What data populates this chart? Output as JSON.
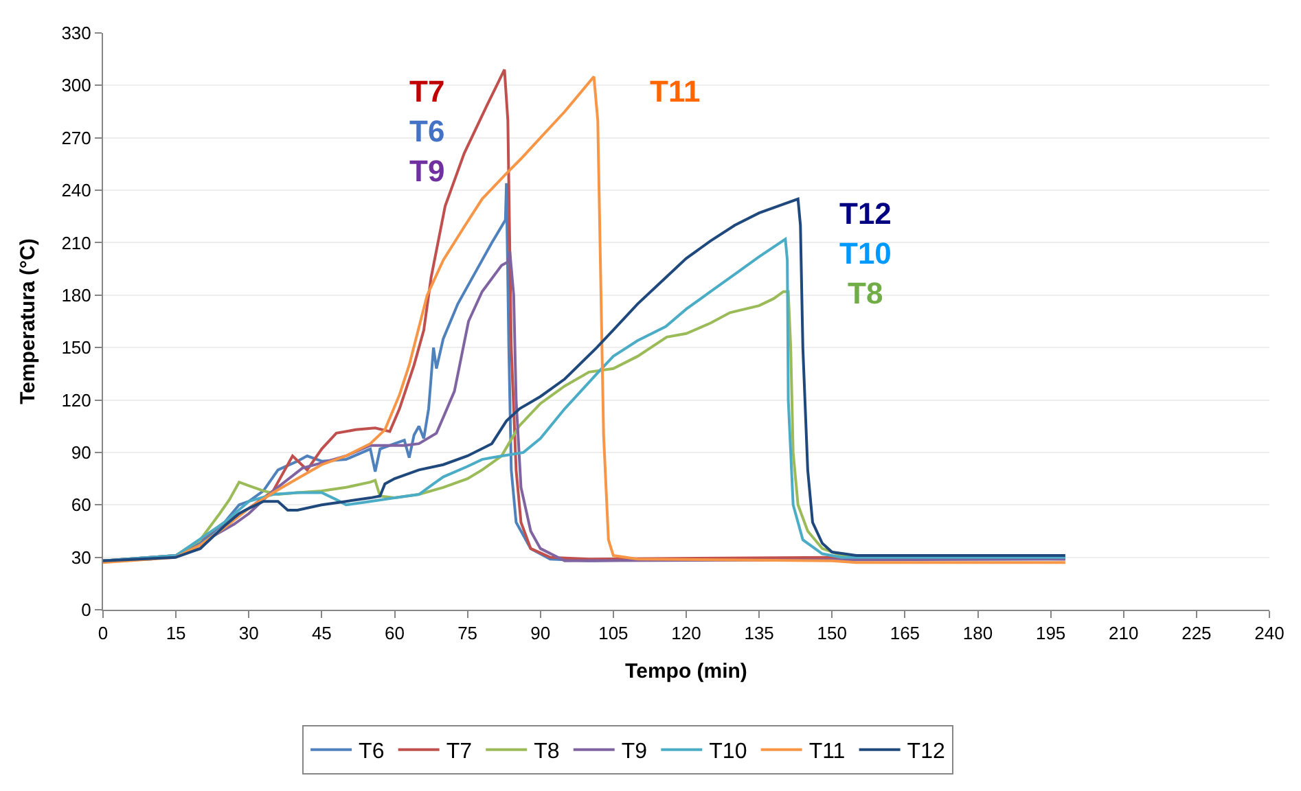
{
  "chart_data": {
    "type": "line",
    "xlabel": "Tempo (min)",
    "ylabel": "Temperatura (°C)",
    "xlim": [
      0,
      240
    ],
    "xticks": [
      0,
      15,
      30,
      45,
      60,
      75,
      90,
      105,
      120,
      135,
      150,
      165,
      180,
      195,
      210,
      225,
      240
    ],
    "ylim": [
      0,
      330
    ],
    "yticks": [
      0,
      30,
      60,
      90,
      120,
      150,
      180,
      210,
      240,
      270,
      300,
      330
    ],
    "grid": "y",
    "legend": "bottom",
    "marker": "none",
    "line_style": "solid",
    "series": [
      {
        "name": "T6",
        "color": "#4f81bd",
        "x": [
          0,
          10,
          15,
          20,
          25,
          28,
          30,
          33,
          36,
          40,
          42,
          45,
          50,
          55,
          56,
          57,
          60,
          62,
          63,
          64,
          65,
          66,
          67,
          68,
          68.6,
          70,
          73,
          76,
          80,
          82.8,
          83,
          83.5,
          84,
          85,
          88,
          92,
          100,
          120,
          150,
          198
        ],
        "values": [
          28,
          29,
          31,
          38,
          50,
          60,
          62,
          68,
          80,
          85,
          88,
          85,
          86,
          92,
          79,
          92,
          95,
          97,
          87,
          100,
          105,
          98,
          115,
          150,
          138,
          155,
          175,
          190,
          210,
          223,
          244,
          150,
          80,
          50,
          35,
          29,
          28,
          29,
          29,
          29
        ]
      },
      {
        "name": "T7",
        "color": "#c0504d",
        "x": [
          0,
          15,
          20,
          25,
          30,
          35,
          39,
          42,
          45,
          48,
          52,
          56,
          59,
          61,
          64,
          66,
          67.5,
          70.4,
          74.3,
          78.9,
          82.6,
          83.3,
          84,
          85,
          86,
          88,
          92,
          100,
          150,
          198
        ],
        "values": [
          28,
          31,
          40,
          50,
          58,
          68,
          88,
          80,
          92,
          101,
          103,
          104,
          102,
          115,
          140,
          160,
          190,
          231,
          261,
          288,
          309,
          280,
          150,
          80,
          50,
          35,
          30,
          29,
          30,
          29
        ]
      },
      {
        "name": "T8",
        "color": "#9bbb59",
        "x": [
          0,
          15,
          20,
          24,
          26,
          28,
          30,
          33,
          36,
          40,
          45,
          50,
          55,
          56,
          57,
          60,
          65,
          70,
          75,
          78,
          82,
          85.6,
          90,
          95,
          100,
          105,
          110,
          116,
          120,
          125,
          129,
          135,
          138,
          140,
          141,
          141.5,
          142,
          143,
          145,
          148,
          152,
          160,
          198
        ],
        "values": [
          28,
          31,
          40,
          55,
          63,
          73,
          71,
          68,
          66,
          67,
          68,
          70,
          73,
          74,
          65,
          64,
          66,
          70,
          75,
          80,
          88,
          105,
          118,
          128,
          136,
          138,
          145,
          156,
          158,
          164,
          170,
          174,
          178,
          182,
          182,
          150,
          90,
          60,
          45,
          35,
          31,
          30,
          30
        ]
      },
      {
        "name": "T9",
        "color": "#8064a2",
        "x": [
          0,
          15,
          20,
          22.6,
          27,
          30,
          35,
          41,
          45,
          50,
          55,
          62,
          65,
          68.6,
          70,
          72.3,
          75.2,
          78,
          82,
          83.3,
          83.7,
          84.5,
          85,
          86,
          88,
          90,
          95,
          198
        ],
        "values": [
          28,
          31,
          35,
          42,
          49,
          55,
          68,
          81,
          84,
          88,
          94,
          94,
          95,
          101,
          110,
          125,
          165,
          182,
          197,
          199,
          205,
          180,
          120,
          70,
          45,
          35,
          28,
          29
        ]
      },
      {
        "name": "T10",
        "color": "#4bacc6",
        "x": [
          0,
          15,
          25,
          30,
          35,
          40,
          45,
          48,
          50,
          55,
          60,
          65,
          68,
          70,
          75,
          78,
          80,
          86.5,
          90,
          95,
          101.6,
          105,
          110,
          115.8,
          120,
          125,
          130,
          135,
          140.4,
          140.8,
          141,
          142,
          144,
          148,
          152,
          198
        ],
        "values": [
          28,
          31,
          50,
          62,
          66,
          67,
          67,
          63,
          60,
          62,
          64,
          66,
          72,
          76,
          82,
          86,
          87,
          90,
          98,
          115,
          135,
          145,
          154,
          162,
          172,
          182,
          192,
          202,
          212,
          200,
          120,
          60,
          40,
          32,
          30,
          30
        ]
      },
      {
        "name": "T11",
        "color": "#f79646",
        "x": [
          0,
          15,
          20,
          25,
          30,
          35,
          40,
          45,
          50,
          55,
          58,
          61,
          63,
          66.7,
          70,
          74.3,
          78,
          82.8,
          86,
          90,
          95,
          101,
          101.8,
          103,
          104,
          105,
          110,
          150,
          155,
          198
        ],
        "values": [
          27,
          30,
          37,
          47,
          58,
          67,
          75,
          83,
          88,
          95,
          103,
          123,
          140,
          180,
          200,
          219,
          235,
          249,
          258,
          270,
          285,
          305,
          280,
          100,
          40,
          31,
          29,
          28,
          27,
          27
        ]
      },
      {
        "name": "T12",
        "color": "#1f497d",
        "x": [
          0,
          15,
          20,
          25,
          28,
          30,
          33,
          36,
          38,
          40,
          45,
          50,
          55,
          57,
          58,
          60,
          65,
          70,
          75,
          80,
          83,
          85.7,
          90,
          95,
          101.6,
          105,
          110,
          115,
          120,
          125,
          130,
          135,
          140,
          143,
          143.5,
          144,
          145,
          146,
          148,
          150,
          155,
          198
        ],
        "values": [
          28,
          30,
          35,
          48,
          55,
          58,
          62,
          62,
          57,
          57,
          60,
          62,
          64,
          65,
          72,
          75,
          80,
          83,
          88,
          95,
          108,
          115,
          122,
          132,
          150,
          160,
          175,
          188,
          201,
          211,
          220,
          227,
          232,
          235,
          220,
          150,
          80,
          50,
          38,
          33,
          31,
          31
        ]
      }
    ],
    "annotations": [
      "T7",
      "T6",
      "T9",
      "T11",
      "T12",
      "T10",
      "T8"
    ]
  }
}
